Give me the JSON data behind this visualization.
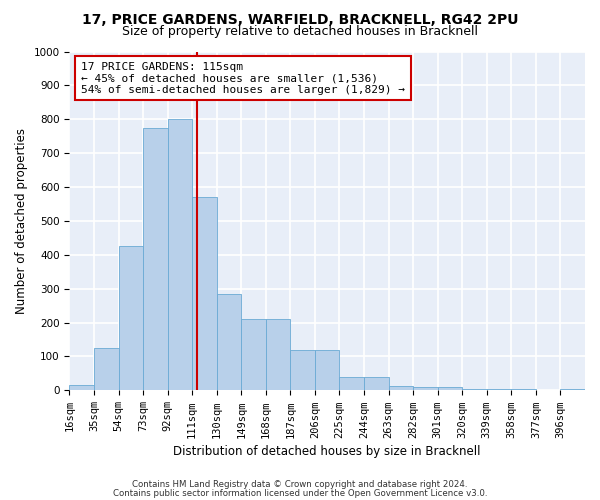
{
  "title1": "17, PRICE GARDENS, WARFIELD, BRACKNELL, RG42 2PU",
  "title2": "Size of property relative to detached houses in Bracknell",
  "xlabel": "Distribution of detached houses by size in Bracknell",
  "ylabel": "Number of detached properties",
  "bin_labels": [
    "16sqm",
    "35sqm",
    "54sqm",
    "73sqm",
    "92sqm",
    "111sqm",
    "130sqm",
    "149sqm",
    "168sqm",
    "187sqm",
    "206sqm",
    "225sqm",
    "244sqm",
    "263sqm",
    "282sqm",
    "301sqm",
    "320sqm",
    "339sqm",
    "358sqm",
    "377sqm",
    "396sqm"
  ],
  "bar_heights": [
    15,
    125,
    425,
    775,
    800,
    570,
    285,
    210,
    210,
    120,
    120,
    38,
    38,
    12,
    10,
    10,
    5,
    5,
    5,
    0,
    5
  ],
  "bin_left_edges": [
    16,
    35,
    54,
    73,
    92,
    111,
    130,
    149,
    168,
    187,
    206,
    225,
    244,
    263,
    282,
    301,
    320,
    339,
    358,
    377,
    396
  ],
  "bar_color": "#b8d0ea",
  "bar_edge_color": "#6aaad4",
  "vline_x": 115,
  "vline_color": "#cc0000",
  "annotation_text": "17 PRICE GARDENS: 115sqm\n← 45% of detached houses are smaller (1,536)\n54% of semi-detached houses are larger (1,829) →",
  "annotation_box_color": "#ffffff",
  "annotation_box_edge": "#cc0000",
  "ylim": [
    0,
    1000
  ],
  "yticks": [
    0,
    100,
    200,
    300,
    400,
    500,
    600,
    700,
    800,
    900,
    1000
  ],
  "footer1": "Contains HM Land Registry data © Crown copyright and database right 2024.",
  "footer2": "Contains public sector information licensed under the Open Government Licence v3.0.",
  "bg_color": "#e8eef8",
  "fig_bg_color": "#ffffff",
  "grid_color": "#ffffff",
  "title1_fontsize": 10,
  "title2_fontsize": 9,
  "xlabel_fontsize": 8.5,
  "ylabel_fontsize": 8.5,
  "annotation_fontsize": 8,
  "tick_fontsize": 7.5
}
